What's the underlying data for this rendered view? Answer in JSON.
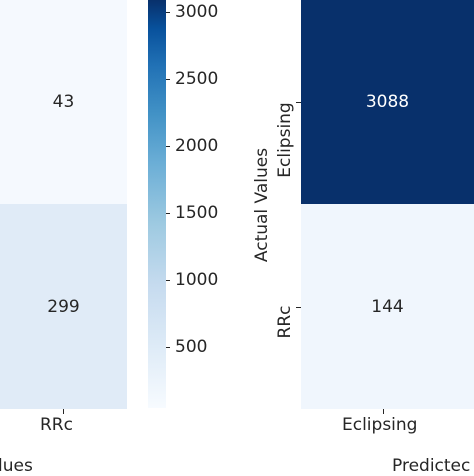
{
  "chart_data": [
    {
      "type": "heatmap",
      "panel": "left",
      "visible_cells": [
        {
          "row": "Eclipsing",
          "col": "RRc",
          "value": "43",
          "color": "#f5f9fe"
        },
        {
          "row": "RRc",
          "col": "RRc",
          "value": "299",
          "color": "#e0ebf7"
        }
      ],
      "x_tick_labels": [
        "RRc"
      ],
      "xlabel_fragment": "lues"
    },
    {
      "type": "colorbar",
      "colormap": "Blues",
      "range": [
        43,
        3088
      ],
      "ticks": [
        "500",
        "1000",
        "1500",
        "2000",
        "2500",
        "3000"
      ]
    },
    {
      "type": "heatmap",
      "panel": "right",
      "ylabel": "Actual Values",
      "y_tick_labels": [
        "Eclipsing",
        "RRc"
      ],
      "x_tick_labels": [
        "Eclipsing"
      ],
      "xlabel_fragment": "Predictec",
      "visible_cells": [
        {
          "row": "Eclipsing",
          "col": "Eclipsing",
          "value": "3088",
          "color": "#08306b"
        },
        {
          "row": "RRc",
          "col": "Eclipsing",
          "value": "144",
          "color": "#f0f6fd"
        }
      ]
    }
  ]
}
